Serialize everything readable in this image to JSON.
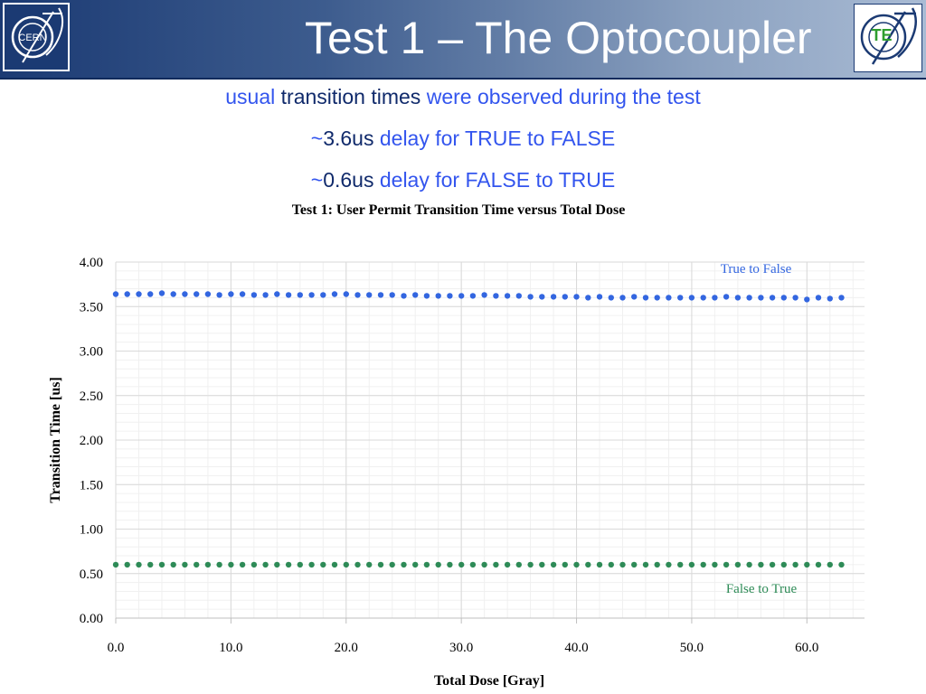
{
  "slide": {
    "title": "Test 1 – The Optocoupler",
    "te_logo_text": "TE",
    "cern_logo_text": "CERN",
    "bullets": [
      {
        "a": "usual ",
        "b": "transition times",
        "c": " were observed during the test"
      },
      {
        "a": "~",
        "b": "3.6us",
        "c": " delay for TRUE to FALSE"
      },
      {
        "a": "~",
        "b": "0.6us",
        "c": " delay for FALSE to TRUE"
      }
    ]
  },
  "colors": {
    "header": "#1b3a73",
    "true_to_false": "#3366e0",
    "false_to_true": "#2e8b57",
    "text_blue": "#3355ee",
    "text_navy": "#102a6b"
  },
  "chart_data": {
    "type": "scatter",
    "title": "Test 1: User Permit Transition Time versus Total Dose",
    "xlabel": "Total Dose [Gray]",
    "ylabel": "Transition Time [us]",
    "xlim": [
      0,
      65
    ],
    "ylim": [
      0,
      4
    ],
    "x_ticks": [
      "0.0",
      "10.0",
      "20.0",
      "30.0",
      "40.0",
      "50.0",
      "60.0"
    ],
    "y_ticks": [
      "0.00",
      "0.50",
      "1.00",
      "1.50",
      "2.00",
      "2.50",
      "3.00",
      "3.50",
      "4.00"
    ],
    "grid": true,
    "series": [
      {
        "name": "True to False",
        "color": "#3366e0",
        "x": [
          0.0,
          1.0,
          2.0,
          3.0,
          4.0,
          5.0,
          6.0,
          7.0,
          8.0,
          9.0,
          10.0,
          11.0,
          12.0,
          13.0,
          14.0,
          15.0,
          16.0,
          17.0,
          18.0,
          19.0,
          20.0,
          21.0,
          22.0,
          23.0,
          24.0,
          25.0,
          26.0,
          27.0,
          28.0,
          29.0,
          30.0,
          31.0,
          32.0,
          33.0,
          34.0,
          35.0,
          36.0,
          37.0,
          38.0,
          39.0,
          40.0,
          41.0,
          42.0,
          43.0,
          44.0,
          45.0,
          46.0,
          47.0,
          48.0,
          49.0,
          50.0,
          51.0,
          52.0,
          53.0,
          54.0,
          55.0,
          56.0,
          57.0,
          58.0,
          59.0,
          60.0,
          61.0,
          62.0,
          63.0
        ],
        "y": [
          3.64,
          3.64,
          3.64,
          3.64,
          3.65,
          3.64,
          3.64,
          3.64,
          3.64,
          3.63,
          3.64,
          3.64,
          3.63,
          3.63,
          3.64,
          3.63,
          3.63,
          3.63,
          3.63,
          3.64,
          3.64,
          3.63,
          3.63,
          3.63,
          3.63,
          3.62,
          3.63,
          3.62,
          3.62,
          3.62,
          3.62,
          3.62,
          3.63,
          3.62,
          3.62,
          3.62,
          3.61,
          3.61,
          3.61,
          3.61,
          3.61,
          3.6,
          3.61,
          3.6,
          3.6,
          3.61,
          3.6,
          3.6,
          3.6,
          3.6,
          3.6,
          3.6,
          3.6,
          3.61,
          3.6,
          3.6,
          3.6,
          3.6,
          3.6,
          3.6,
          3.58,
          3.6,
          3.59,
          3.6
        ]
      },
      {
        "name": "False to True",
        "color": "#2e8b57",
        "x": [
          0.0,
          1.0,
          2.0,
          3.0,
          4.0,
          5.0,
          6.0,
          7.0,
          8.0,
          9.0,
          10.0,
          11.0,
          12.0,
          13.0,
          14.0,
          15.0,
          16.0,
          17.0,
          18.0,
          19.0,
          20.0,
          21.0,
          22.0,
          23.0,
          24.0,
          25.0,
          26.0,
          27.0,
          28.0,
          29.0,
          30.0,
          31.0,
          32.0,
          33.0,
          34.0,
          35.0,
          36.0,
          37.0,
          38.0,
          39.0,
          40.0,
          41.0,
          42.0,
          43.0,
          44.0,
          45.0,
          46.0,
          47.0,
          48.0,
          49.0,
          50.0,
          51.0,
          52.0,
          53.0,
          54.0,
          55.0,
          56.0,
          57.0,
          58.0,
          59.0,
          60.0,
          61.0,
          62.0,
          63.0
        ],
        "y": [
          0.6,
          0.6,
          0.6,
          0.6,
          0.6,
          0.6,
          0.6,
          0.6,
          0.6,
          0.6,
          0.6,
          0.6,
          0.6,
          0.6,
          0.6,
          0.6,
          0.6,
          0.6,
          0.6,
          0.6,
          0.6,
          0.6,
          0.6,
          0.6,
          0.6,
          0.6,
          0.6,
          0.6,
          0.6,
          0.6,
          0.6,
          0.6,
          0.6,
          0.6,
          0.6,
          0.6,
          0.6,
          0.6,
          0.6,
          0.6,
          0.6,
          0.6,
          0.6,
          0.6,
          0.6,
          0.6,
          0.6,
          0.6,
          0.6,
          0.6,
          0.6,
          0.6,
          0.6,
          0.6,
          0.6,
          0.6,
          0.6,
          0.6,
          0.6,
          0.6,
          0.6,
          0.6,
          0.6,
          0.6
        ]
      }
    ]
  }
}
